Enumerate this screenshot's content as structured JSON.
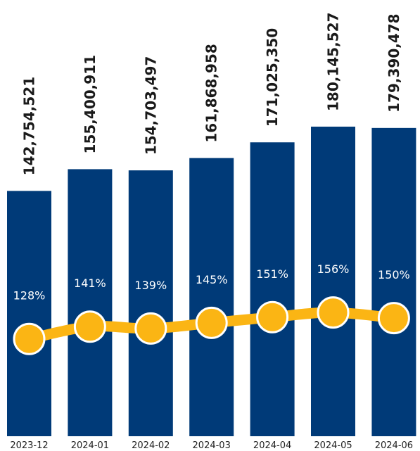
{
  "chart_data": {
    "type": "bar",
    "categories": [
      "2023-12",
      "2024-01",
      "2024-02",
      "2024-03",
      "2024-04",
      "2024-05",
      "2024-06"
    ],
    "series": [
      {
        "type": "bar",
        "values": [
          142754521,
          155400911,
          154703497,
          161868958,
          171025350,
          180145527,
          179390478
        ],
        "labels": [
          "142,754,521",
          "155,400,911",
          "154,703,497",
          "161,868,958",
          "171,025,350",
          "180,145,527",
          "179,390,478"
        ],
        "color": "#003a78"
      },
      {
        "type": "line",
        "values": [
          128,
          141,
          139,
          145,
          151,
          156,
          150
        ],
        "labels": [
          "128%",
          "141%",
          "139%",
          "145%",
          "151%",
          "156%",
          "150%"
        ],
        "color": "#fbb514"
      }
    ],
    "title": "",
    "xlabel": "",
    "ylabel": "",
    "grid": false,
    "legend": "none"
  }
}
